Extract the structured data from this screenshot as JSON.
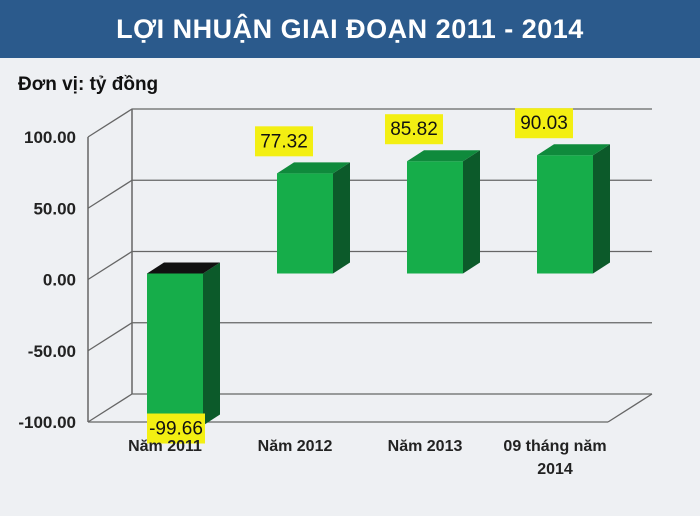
{
  "header": {
    "title": "LỢI NHUẬN GIAI ĐOẠN 2011 - 2014"
  },
  "unit_label": "Đơn vị: tỷ đồng",
  "chart_data": {
    "type": "bar",
    "title": "LỢI NHUẬN GIAI ĐOẠN 2011 - 2014",
    "ylabel": "Đơn vị: tỷ đồng",
    "xlabel": "",
    "categories": [
      "Năm 2011",
      "Năm 2012",
      "Năm 2013",
      "09 tháng năm 2014"
    ],
    "values": [
      -99.66,
      77.32,
      85.82,
      90.03
    ],
    "data_labels": [
      "-99.66",
      "77.32",
      "85.82",
      "90.03"
    ],
    "ylim": [
      -100,
      100
    ],
    "yticks": [
      "100.00",
      "50.00",
      "0.00",
      "-50.00",
      "-100.00"
    ],
    "ytick_values": [
      100,
      50,
      0,
      -50,
      -100
    ],
    "grid": true,
    "colors": {
      "bar_front": "#16ad4a",
      "bar_side": "#0c5a2a",
      "bar_top": "#0f8a3c",
      "negative_top": "#111111",
      "label_bg": "#f3ef12",
      "grid": "#666666"
    }
  }
}
